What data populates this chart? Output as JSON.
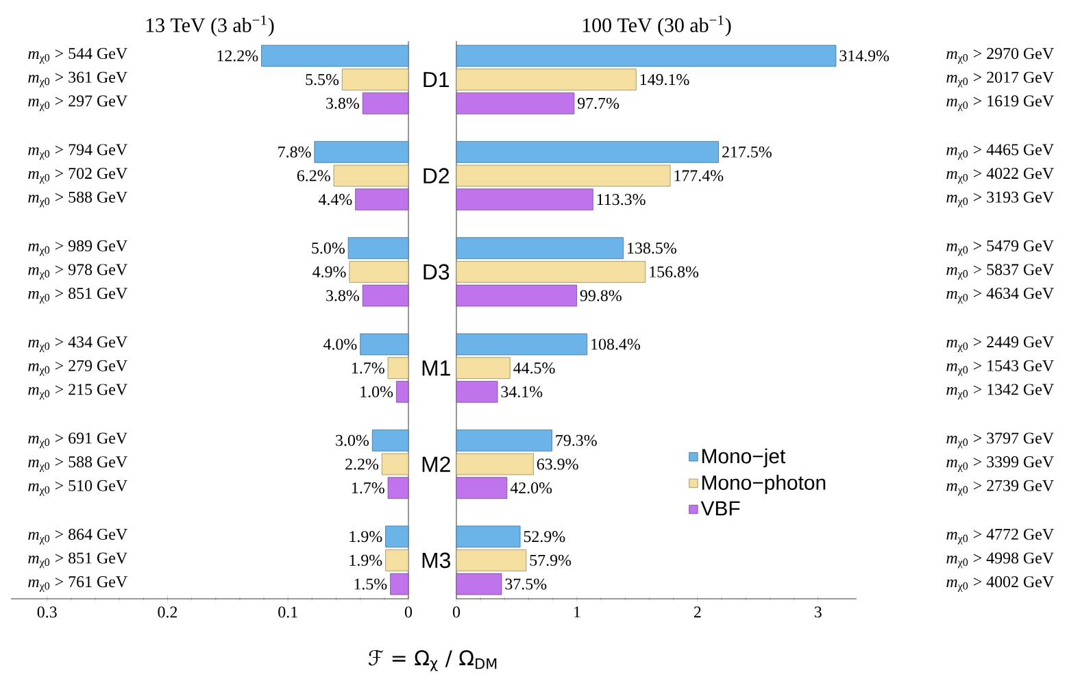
{
  "chart_data": [
    {
      "type": "bar",
      "orientation": "horizontal",
      "title": "13 TeV (3 ab$^{−1}$)",
      "xlabel": "ℱ = Ω$_{χ}$ / Ω$_{DM}$",
      "categories": [
        "D1",
        "D2",
        "D3",
        "M1",
        "M2",
        "M3"
      ],
      "series": [
        {
          "color": "#6ab4ea",
          "values": [
            0.122,
            0.078,
            0.05,
            0.04,
            0.03,
            0.019
          ],
          "value_labels": [
            "12.2%",
            "7.8%",
            "5.0%",
            "4.0%",
            "3.0%",
            "1.9%"
          ]
        },
        {
          "color": "#f4dfa0",
          "values": [
            0.055,
            0.062,
            0.049,
            0.017,
            0.022,
            0.019
          ],
          "value_labels": [
            "5.5%",
            "6.2%",
            "4.9%",
            "1.7%",
            "2.2%",
            "1.9%"
          ]
        },
        {
          "color": "#c074ec",
          "values": [
            0.038,
            0.044,
            0.038,
            0.01,
            0.017,
            0.015
          ],
          "value_labels": [
            "3.8%",
            "4.4%",
            "3.8%",
            "1.0%",
            "1.7%",
            "1.5%"
          ]
        }
      ],
      "annotations": [
        "*m*$_{χ0}$ > 544 GeV",
        "*m*$_{χ0}$ > 361 GeV",
        "*m*$_{χ0}$ > 297 GeV",
        "*m*$_{χ0}$ > 794 GeV",
        "*m*$_{χ0}$ > 702 GeV",
        "*m*$_{χ0}$ > 588 GeV",
        "*m*$_{χ0}$ > 989 GeV",
        "*m*$_{χ0}$ > 978 GeV",
        "*m*$_{χ0}$ > 851 GeV",
        "*m*$_{χ0}$ > 434 GeV",
        "*m*$_{χ0}$ > 279 GeV",
        "*m*$_{χ0}$ > 215 GeV",
        "*m*$_{χ0}$ > 691 GeV",
        "*m*$_{χ0}$ > 588 GeV",
        "*m*$_{χ0}$ > 510 GeV",
        "*m*$_{χ0}$ > 864 GeV",
        "*m*$_{χ0}$ > 851 GeV",
        "*m*$_{χ0}$ > 761 GeV"
      ],
      "xlim": [
        0.33,
        0
      ],
      "xticks": [
        0.3,
        0.2,
        0.1,
        0
      ]
    },
    {
      "type": "bar",
      "orientation": "horizontal",
      "title": "100 TeV (30 ab$^{−1}$)",
      "categories": [
        null,
        null,
        null,
        null,
        null,
        null
      ],
      "series": [
        {
          "name": "Mono−jet",
          "color": "#6ab4ea",
          "values": [
            3.149,
            2.175,
            1.385,
            1.084,
            0.793,
            0.529
          ],
          "value_labels": [
            "314.9%",
            "217.5%",
            "138.5%",
            "108.4%",
            "79.3%",
            "52.9%"
          ]
        },
        {
          "name": "Mono−photon",
          "color": "#f4dfa0",
          "values": [
            1.491,
            1.774,
            1.568,
            0.445,
            0.639,
            0.579
          ],
          "value_labels": [
            "149.1%",
            "177.4%",
            "156.8%",
            "44.5%",
            "63.9%",
            "57.9%"
          ]
        },
        {
          "name": "VBF",
          "color": "#c074ec",
          "values": [
            0.977,
            1.133,
            0.998,
            0.341,
            0.42,
            0.375
          ],
          "value_labels": [
            "97.7%",
            "113.3%",
            "99.8%",
            "34.1%",
            "42.0%",
            "37.5%"
          ]
        }
      ],
      "annotations": [
        "*m*$_{χ0}$ > 2970 GeV",
        "*m*$_{χ0}$ > 2017 GeV",
        "*m*$_{χ0}$ > 1619 GeV",
        "*m*$_{χ0}$ > 4465 GeV",
        "*m*$_{χ0}$ > 4022 GeV",
        "*m*$_{χ0}$ > 3193 GeV",
        "*m*$_{χ0}$ > 5479 GeV",
        "*m*$_{χ0}$ > 5837 GeV",
        "*m*$_{χ0}$ > 4634 GeV",
        "*m*$_{χ0}$ > 2449 GeV",
        "*m*$_{χ0}$ > 1543 GeV",
        "*m*$_{χ0}$ > 1342 GeV",
        "*m*$_{χ0}$ > 3797 GeV",
        "*m*$_{χ0}$ > 3399 GeV",
        "*m*$_{χ0}$ > 2739 GeV",
        "*m*$_{χ0}$ > 4772 GeV",
        "*m*$_{χ0}$ > 4998 GeV",
        "*m*$_{χ0}$ > 4002 GeV"
      ],
      "xlim": [
        0,
        3.32
      ],
      "xticks": [
        0,
        1,
        2,
        3
      ],
      "legend": "bottom right",
      "tick_labels": "x"
    }
  ]
}
